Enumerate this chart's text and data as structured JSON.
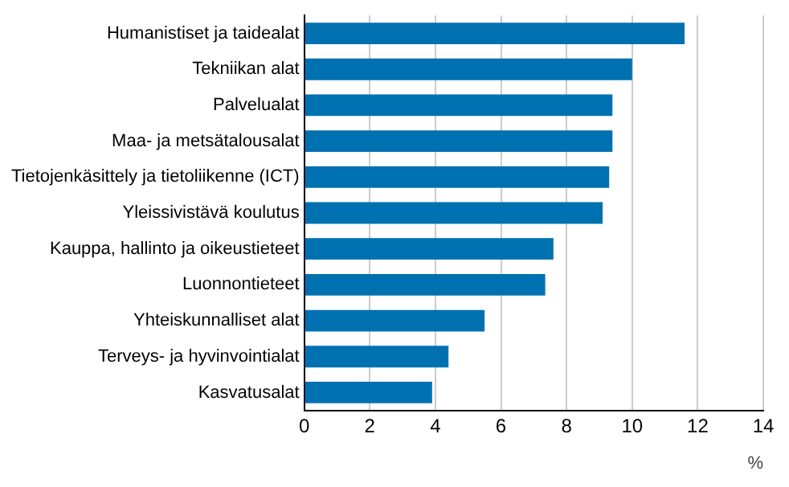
{
  "chart_data": {
    "type": "bar",
    "orientation": "horizontal",
    "xlabel": "%",
    "categories": [
      "Humanistiset ja taidealat",
      "Tekniikan alat",
      "Palvelualat",
      "Maa- ja metsätalousalat",
      "Tietojenkäsittely ja tietoliikenne (ICT)",
      "Yleissivistävä koulutus",
      "Kauppa, hallinto ja oikeustieteet",
      "Luonnontieteet",
      "Yhteiskunnalliset alat",
      "Terveys- ja hyvinvointialat",
      "Kasvatusalat"
    ],
    "values": [
      11.6,
      10.0,
      9.4,
      9.4,
      9.3,
      9.1,
      7.6,
      7.35,
      5.5,
      4.4,
      3.9
    ],
    "color": "#0071b0",
    "xlim": [
      0,
      14
    ],
    "xticks": [
      0,
      2,
      4,
      6,
      8,
      10,
      12,
      14
    ],
    "grid": "x"
  }
}
